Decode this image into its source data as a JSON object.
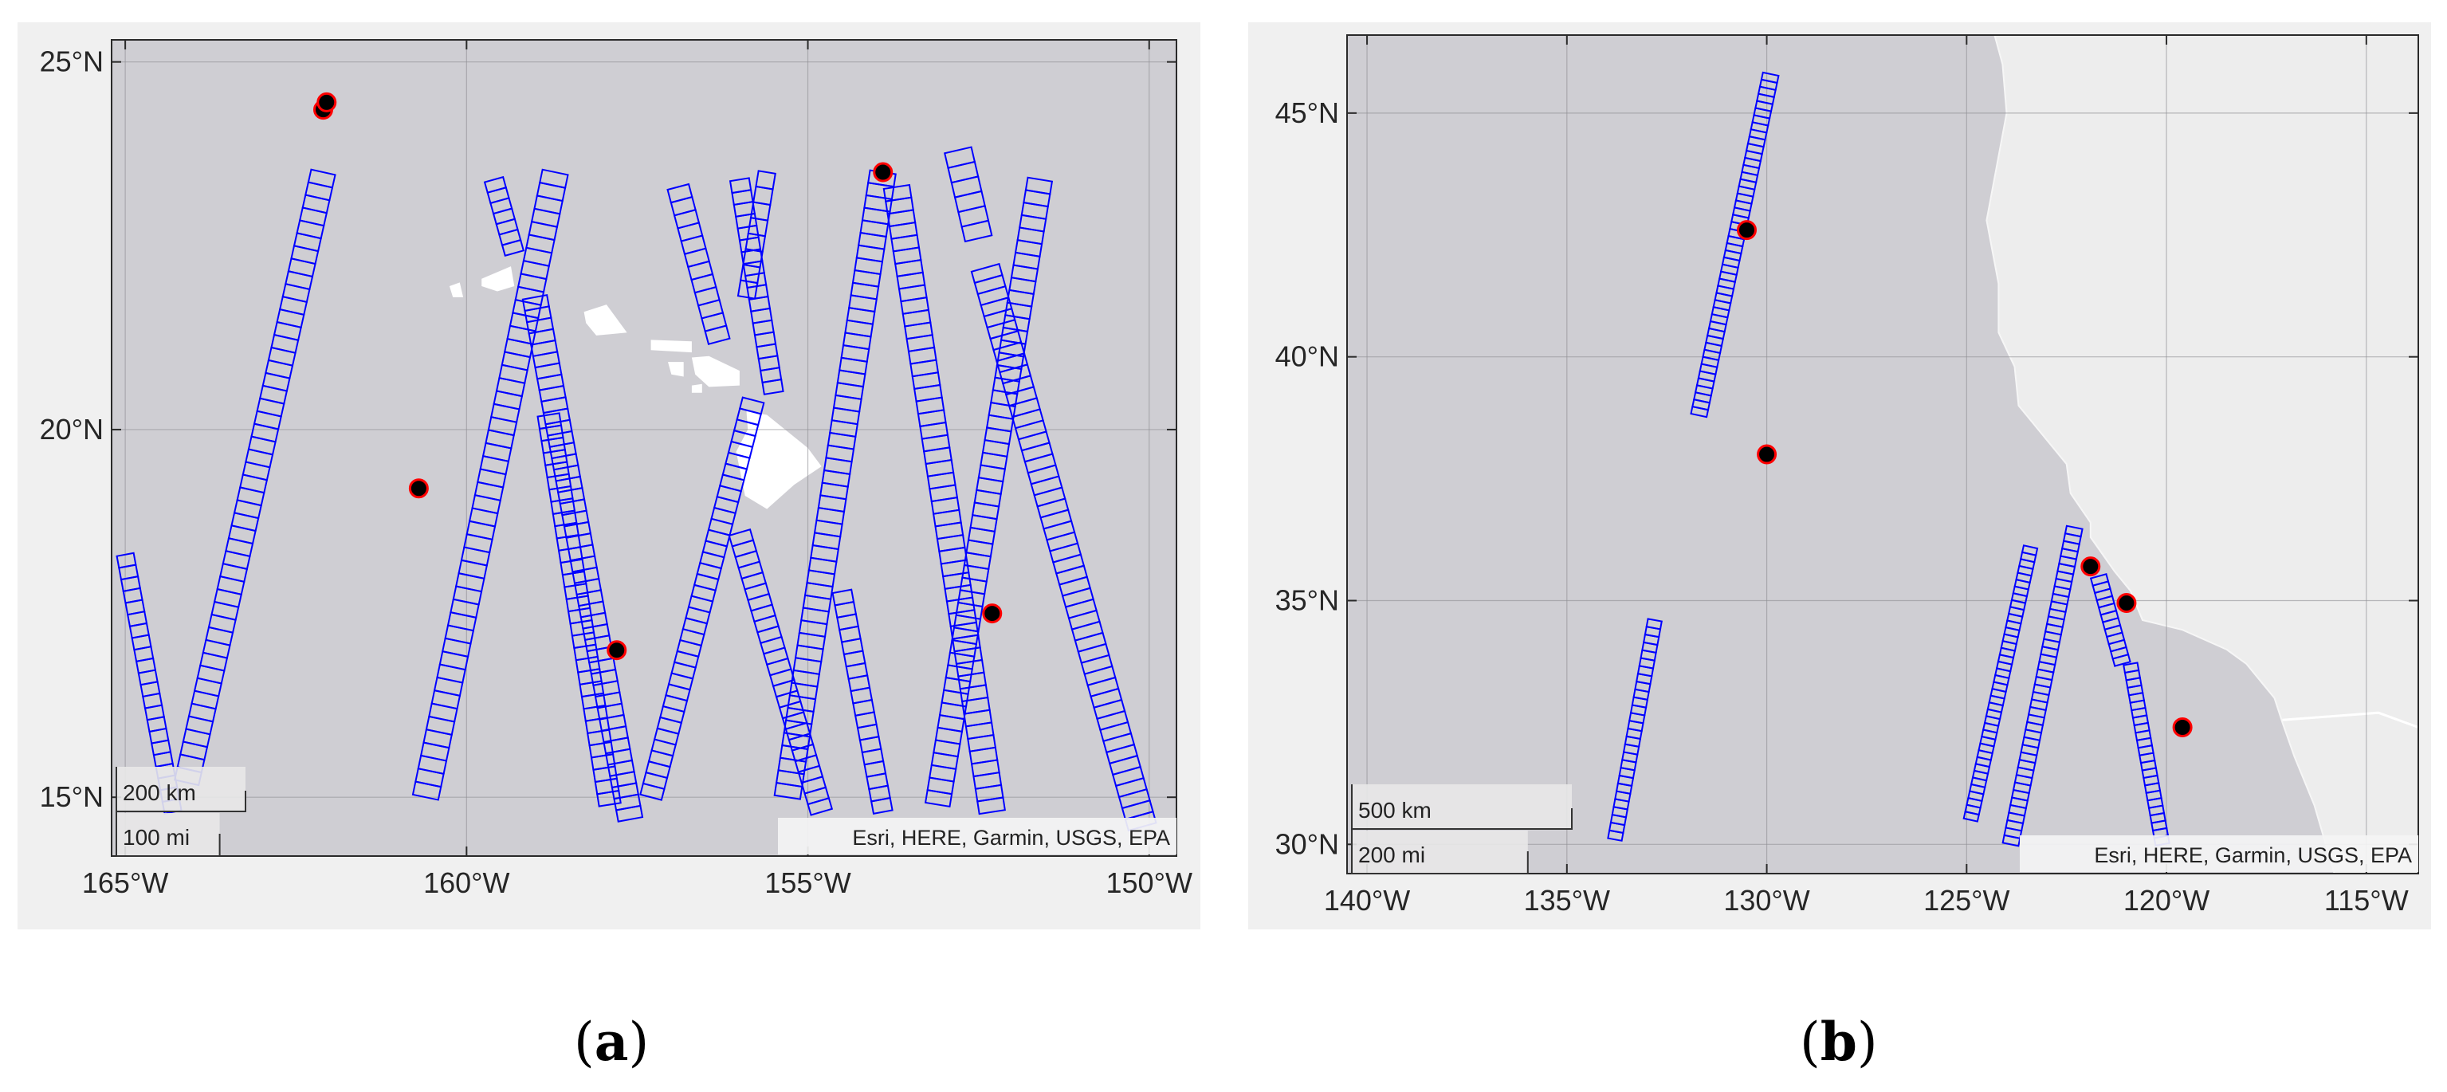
{
  "panels": [
    {
      "id": "a",
      "caption": {
        "open": "(",
        "label": "a",
        "close": ")"
      },
      "lon_range": [
        -165.2,
        -149.6
      ],
      "lat_range": [
        14.2,
        25.3
      ],
      "x_ticks": [
        -165,
        -160,
        -155,
        -150
      ],
      "x_tick_labels": [
        "165°W",
        "160°W",
        "155°W",
        "150°W"
      ],
      "y_ticks": [
        15,
        20,
        25
      ],
      "y_tick_labels": [
        "15°N",
        "20°N",
        "25°N"
      ],
      "scalebar": {
        "top": "200 km",
        "bottom": "100 mi"
      },
      "attribution": "Esri, HERE, Garmin, USGS, EPA",
      "colors": {
        "ocean": "#cfced3",
        "land": "#e4e4e4",
        "footprint": "#0000ff",
        "marker_fill": "#000000",
        "marker_edge": "#ff0000"
      },
      "markers": [
        [
          -162.1,
          24.35
        ],
        [
          -162.05,
          24.45
        ],
        [
          -160.7,
          19.2
        ],
        [
          -157.8,
          17.0
        ],
        [
          -153.9,
          23.5
        ],
        [
          -152.3,
          17.5
        ]
      ],
      "swaths": [
        {
          "start": [
            -165.0,
            18.3
          ],
          "end": [
            -164.3,
            14.8
          ],
          "n": 22,
          "w": 0.25
        },
        {
          "start": [
            -164.1,
            15.2
          ],
          "end": [
            -162.1,
            23.5
          ],
          "n": 48,
          "w": 0.36
        },
        {
          "start": [
            -159.6,
            23.4
          ],
          "end": [
            -159.3,
            22.4
          ],
          "n": 7,
          "w": 0.28
        },
        {
          "start": [
            -160.6,
            15.0
          ],
          "end": [
            -158.7,
            23.5
          ],
          "n": 48,
          "w": 0.38
        },
        {
          "start": [
            -159.0,
            21.8
          ],
          "end": [
            -157.6,
            14.7
          ],
          "n": 46,
          "w": 0.36
        },
        {
          "start": [
            -158.8,
            20.2
          ],
          "end": [
            -157.9,
            14.9
          ],
          "n": 32,
          "w": 0.32
        },
        {
          "start": [
            -157.3,
            15.0
          ],
          "end": [
            -155.8,
            20.4
          ],
          "n": 36,
          "w": 0.32
        },
        {
          "start": [
            -156.9,
            23.3
          ],
          "end": [
            -156.3,
            21.2
          ],
          "n": 12,
          "w": 0.32
        },
        {
          "start": [
            -156.0,
            23.4
          ],
          "end": [
            -155.5,
            20.5
          ],
          "n": 18,
          "w": 0.28
        },
        {
          "start": [
            -155.6,
            23.5
          ],
          "end": [
            -155.9,
            21.8
          ],
          "n": 8,
          "w": 0.25
        },
        {
          "start": [
            -156.0,
            18.6
          ],
          "end": [
            -154.8,
            14.8
          ],
          "n": 26,
          "w": 0.32
        },
        {
          "start": [
            -155.3,
            15.0
          ],
          "end": [
            -153.9,
            23.5
          ],
          "n": 50,
          "w": 0.38
        },
        {
          "start": [
            -154.5,
            17.8
          ],
          "end": [
            -153.9,
            14.8
          ],
          "n": 18,
          "w": 0.28
        },
        {
          "start": [
            -153.7,
            23.3
          ],
          "end": [
            -152.3,
            14.8
          ],
          "n": 50,
          "w": 0.38
        },
        {
          "start": [
            -152.8,
            23.8
          ],
          "end": [
            -152.5,
            22.6
          ],
          "n": 6,
          "w": 0.4
        },
        {
          "start": [
            -153.1,
            14.9
          ],
          "end": [
            -151.6,
            23.4
          ],
          "n": 50,
          "w": 0.36
        },
        {
          "start": [
            -152.4,
            22.2
          ],
          "end": [
            -150.1,
            14.6
          ],
          "n": 50,
          "w": 0.42
        }
      ]
    },
    {
      "id": "b",
      "caption": {
        "open": "(",
        "label": "b",
        "close": ")"
      },
      "lon_range": [
        -140.5,
        -113.7
      ],
      "lat_range": [
        29.4,
        46.6
      ],
      "x_ticks": [
        -140,
        -135,
        -130,
        -125,
        -120,
        -115
      ],
      "x_tick_labels": [
        "140°W",
        "135°W",
        "130°W",
        "125°W",
        "120°W",
        "115°W"
      ],
      "y_ticks": [
        30,
        35,
        40,
        45
      ],
      "y_tick_labels": [
        "30°N",
        "35°N",
        "40°N",
        "45°N"
      ],
      "scalebar": {
        "top": "500 km",
        "bottom": "200 mi"
      },
      "attribution": "Esri, HERE, Garmin, USGS, EPA",
      "colors": {
        "ocean": "#cfced3",
        "land": "#ededed",
        "footprint": "#0000ff",
        "marker_fill": "#000000",
        "marker_edge": "#ff0000"
      },
      "markers": [
        [
          -130.5,
          42.6
        ],
        [
          -130.0,
          38.0
        ],
        [
          -121.9,
          35.7
        ],
        [
          -121.0,
          34.95
        ],
        [
          -119.6,
          32.4
        ]
      ],
      "swaths": [
        {
          "start": [
            -131.7,
            38.8
          ],
          "end": [
            -129.9,
            45.8
          ],
          "n": 48,
          "w": 0.4
        },
        {
          "start": [
            -133.8,
            30.1
          ],
          "end": [
            -132.8,
            34.6
          ],
          "n": 28,
          "w": 0.35
        },
        {
          "start": [
            -124.9,
            30.5
          ],
          "end": [
            -123.4,
            36.1
          ],
          "n": 40,
          "w": 0.35
        },
        {
          "start": [
            -123.9,
            30.0
          ],
          "end": [
            -122.3,
            36.5
          ],
          "n": 42,
          "w": 0.4
        },
        {
          "start": [
            -121.7,
            35.5
          ],
          "end": [
            -121.1,
            33.7
          ],
          "n": 12,
          "w": 0.4
        },
        {
          "start": [
            -120.9,
            33.7
          ],
          "end": [
            -120.1,
            30.0
          ],
          "n": 24,
          "w": 0.35
        }
      ]
    }
  ]
}
